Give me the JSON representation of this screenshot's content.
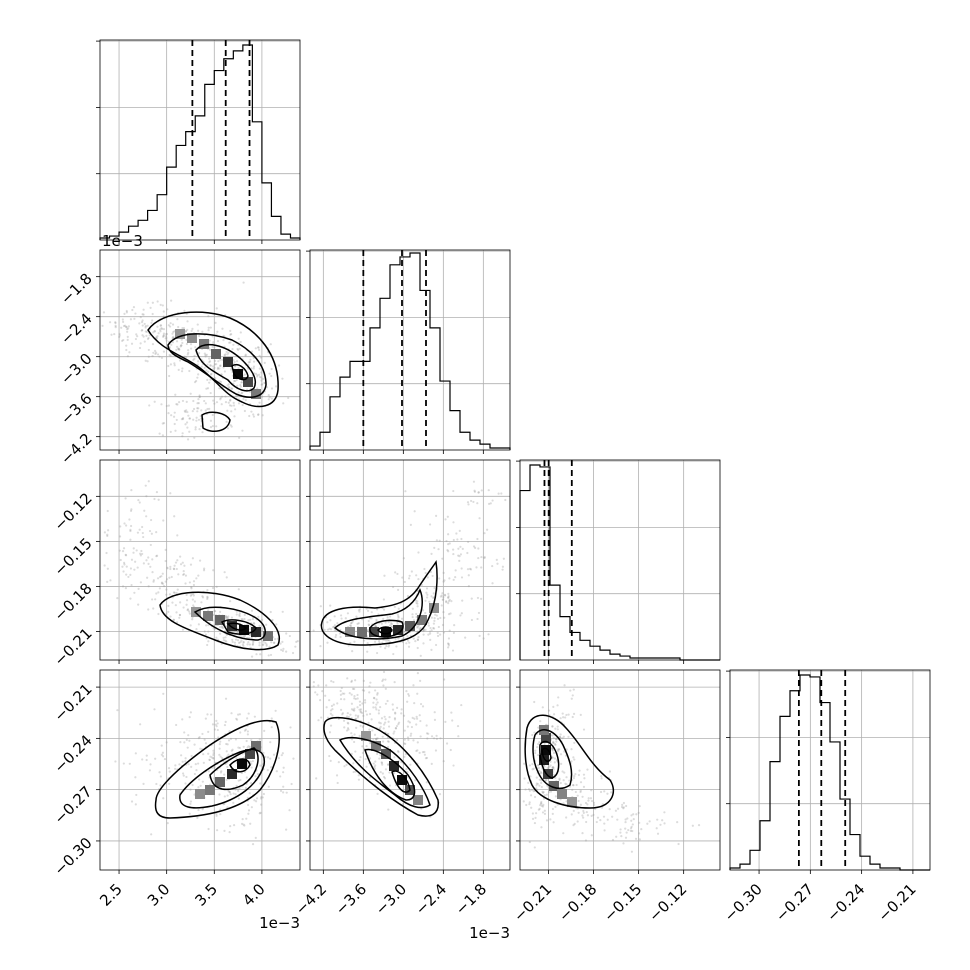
{
  "chart_data": {
    "type": "corner",
    "parameters": [
      {
        "range": [
          2.3,
          4.4
        ],
        "ticks": [
          2.5,
          3.0,
          3.5,
          4.0
        ],
        "tick_labels": [
          "2.5",
          "3.0",
          "3.5",
          "4.0"
        ],
        "offset_label": "1e−3",
        "quantiles": [
          3.27,
          3.62,
          3.87
        ]
      },
      {
        "range": [
          -4.4,
          -1.4
        ],
        "ticks": [
          -4.2,
          -3.6,
          -3.0,
          -2.4,
          -1.8
        ],
        "tick_labels": [
          "−4.2",
          "−3.6",
          "−3.0",
          "−2.4",
          "−1.8"
        ],
        "offset_label": "1e−3",
        "quantiles": [
          -3.6,
          -3.02,
          -2.66
        ]
      },
      {
        "range": [
          -0.229,
          -0.0958
        ],
        "ticks": [
          -0.21,
          -0.18,
          -0.15,
          -0.12
        ],
        "tick_labels": [
          "−0.21",
          "−0.18",
          "−0.15",
          "−0.12"
        ],
        "offset_label": "",
        "quantiles": [
          -0.2127,
          -0.2099,
          -0.1945
        ]
      },
      {
        "range": [
          -0.317,
          -0.2
        ],
        "ticks": [
          -0.3,
          -0.27,
          -0.24,
          -0.21
        ],
        "tick_labels": [
          "−0.30",
          "−0.27",
          "−0.24",
          "−0.21"
        ],
        "offset_label": "",
        "quantiles": [
          -0.2767,
          -0.2636,
          -0.2496
        ]
      }
    ],
    "histograms": [
      [
        0.01,
        0.02,
        0.04,
        0.07,
        0.1,
        0.15,
        0.23,
        0.37,
        0.48,
        0.55,
        0.63,
        0.79,
        0.86,
        0.92,
        0.96,
        0.99,
        0.6,
        0.29,
        0.12,
        0.03,
        0.01
      ],
      [
        0.02,
        0.09,
        0.27,
        0.37,
        0.45,
        0.45,
        0.62,
        0.77,
        0.94,
        0.98,
        1.0,
        0.81,
        0.62,
        0.35,
        0.2,
        0.09,
        0.05,
        0.03,
        0.01,
        0.01
      ],
      [
        0.86,
        0.99,
        0.98,
        0.38,
        0.22,
        0.14,
        0.1,
        0.07,
        0.05,
        0.03,
        0.02,
        0.01,
        0.01,
        0.01,
        0.01,
        0.01,
        0.0,
        0.0,
        0.0,
        0.0
      ],
      [
        0.01,
        0.03,
        0.1,
        0.25,
        0.55,
        0.78,
        0.91,
        0.99,
        0.98,
        0.85,
        0.65,
        0.36,
        0.18,
        0.07,
        0.03,
        0.01,
        0.01,
        0.0,
        0.0,
        0.0
      ]
    ]
  }
}
